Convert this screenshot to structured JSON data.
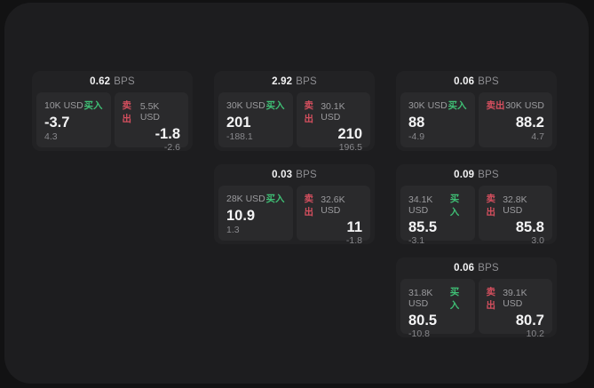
{
  "colors": {
    "background": "#121213",
    "surface": "#1d1d1f",
    "card": "#222224",
    "panel": "#2a2a2c",
    "buy_green": "#3fbf75",
    "sell_red": "#d44f5e",
    "text_primary": "#f4f4f5",
    "text_muted": "#8e8e92"
  },
  "cards": [
    {
      "bps": "0.62",
      "bps_unit": "BPS",
      "buy": {
        "side": "买入",
        "amount": "10K USD",
        "price": "-3.7",
        "delta": "4.3"
      },
      "sell": {
        "side": "卖出",
        "amount": "5.5K USD",
        "price": "-1.8",
        "delta": "-2.6"
      }
    },
    {
      "bps": "2.92",
      "bps_unit": "BPS",
      "buy": {
        "side": "买入",
        "amount": "30K USD",
        "price": "201",
        "delta": "-188.1"
      },
      "sell": {
        "side": "卖出",
        "amount": "30.1K USD",
        "price": "210",
        "delta": "196.5"
      }
    },
    {
      "bps": "0.06",
      "bps_unit": "BPS",
      "buy": {
        "side": "买入",
        "amount": "30K USD",
        "price": "88",
        "delta": "-4.9"
      },
      "sell": {
        "side": "卖出",
        "amount": "30K USD",
        "price": "88.2",
        "delta": "4.7"
      }
    },
    {
      "bps": "0.03",
      "bps_unit": "BPS",
      "buy": {
        "side": "买入",
        "amount": "28K USD",
        "price": "10.9",
        "delta": "1.3"
      },
      "sell": {
        "side": "卖出",
        "amount": "32.6K USD",
        "price": "11",
        "delta": "-1.8"
      }
    },
    {
      "bps": "0.09",
      "bps_unit": "BPS",
      "buy": {
        "side": "买入",
        "amount": "34.1K USD",
        "price": "85.5",
        "delta": "-3.1"
      },
      "sell": {
        "side": "卖出",
        "amount": "32.8K USD",
        "price": "85.8",
        "delta": "3.0"
      }
    },
    {
      "bps": "0.06",
      "bps_unit": "BPS",
      "buy": {
        "side": "买入",
        "amount": "31.8K USD",
        "price": "80.5",
        "delta": "-10.8"
      },
      "sell": {
        "side": "卖出",
        "amount": "39.1K USD",
        "price": "80.7",
        "delta": "10.2"
      }
    }
  ]
}
